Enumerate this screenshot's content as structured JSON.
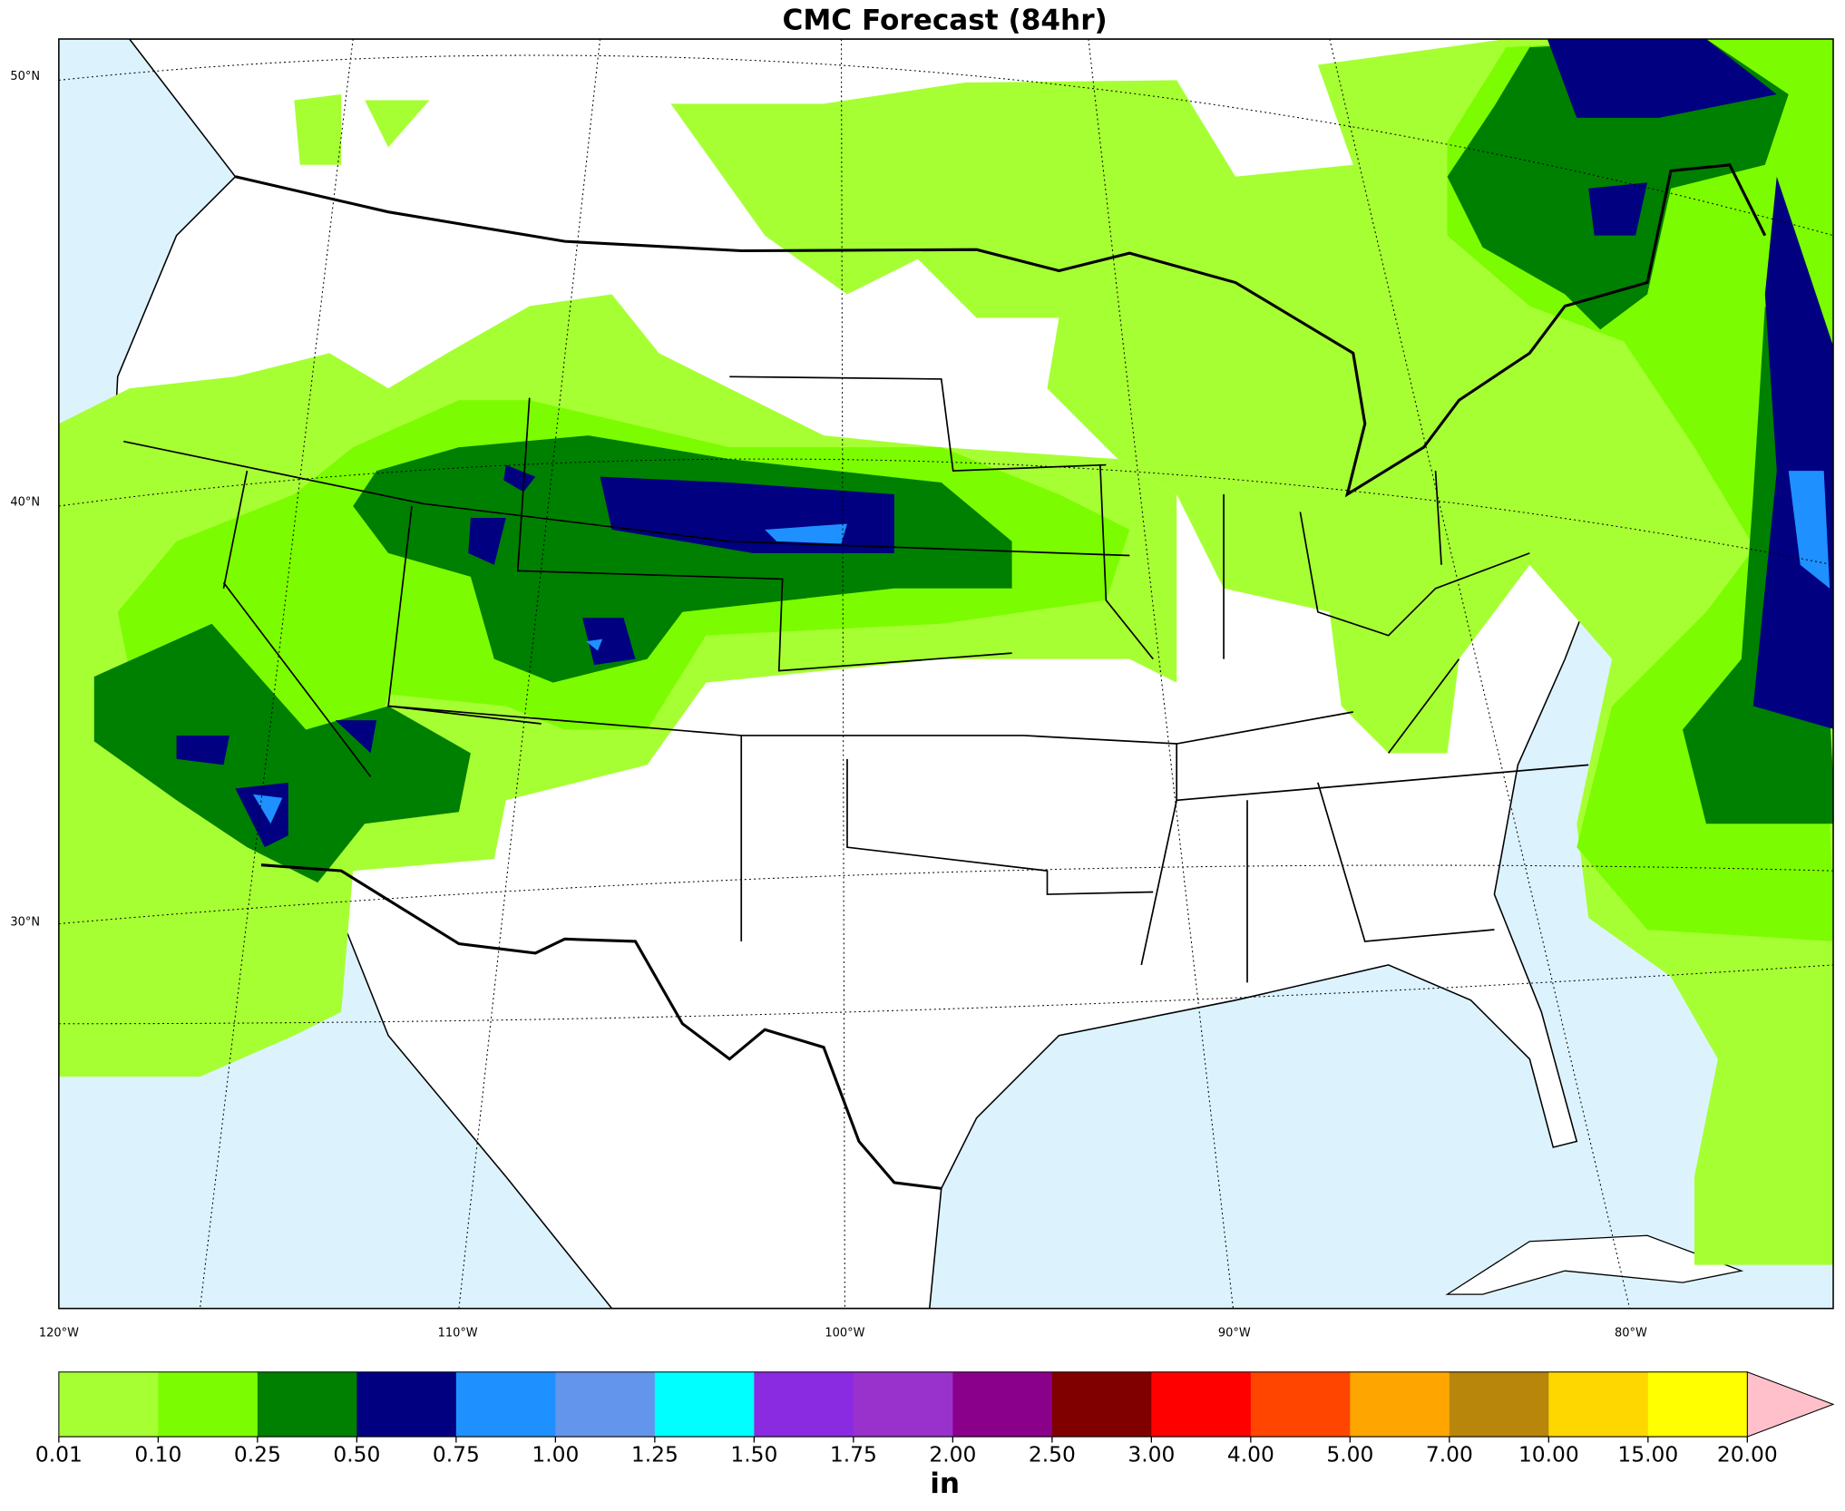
{
  "title": "CMC Forecast (84hr)",
  "map": {
    "lat_labels": [
      "50°N",
      "40°N",
      "30°N"
    ],
    "lon_labels": [
      "120°W",
      "110°W",
      "100°W",
      "90°W",
      "80°W"
    ]
  },
  "colorbar": {
    "levels": [
      {
        "value": 0.01,
        "label": "0.01"
      },
      {
        "value": 0.1,
        "label": "0.10"
      },
      {
        "value": 0.25,
        "label": "0.25"
      },
      {
        "value": 0.5,
        "label": "0.50"
      },
      {
        "value": 0.75,
        "label": "0.75"
      },
      {
        "value": 1,
        "label": "1.00"
      },
      {
        "value": 1.25,
        "label": "1.25"
      },
      {
        "value": 1.5,
        "label": "1.50"
      },
      {
        "value": 1.75,
        "label": "1.75"
      },
      {
        "value": 2,
        "label": "2.00"
      },
      {
        "value": 2.5,
        "label": "2.50"
      },
      {
        "value": 3,
        "label": "3.00"
      },
      {
        "value": 4,
        "label": "4.00"
      },
      {
        "value": 5,
        "label": "5.00"
      },
      {
        "value": 7,
        "label": "7.00"
      },
      {
        "value": 10,
        "label": "10.00"
      },
      {
        "value": 15,
        "label": "15.00"
      },
      {
        "value": 20,
        "label": "20.00"
      }
    ],
    "colors": [
      "#a6ff33",
      "#7cfc00",
      "#008000",
      "#000080",
      "#1e90ff",
      "#6495ed",
      "#00ffff",
      "#8a2be2",
      "#9932cc",
      "#8b008b",
      "#800000",
      "#ff0000",
      "#ff4500",
      "#ffa500",
      "#b8860b",
      "#ffd700",
      "#ffff00"
    ],
    "extend_color": "#ffc0cb",
    "unit": "in"
  }
}
